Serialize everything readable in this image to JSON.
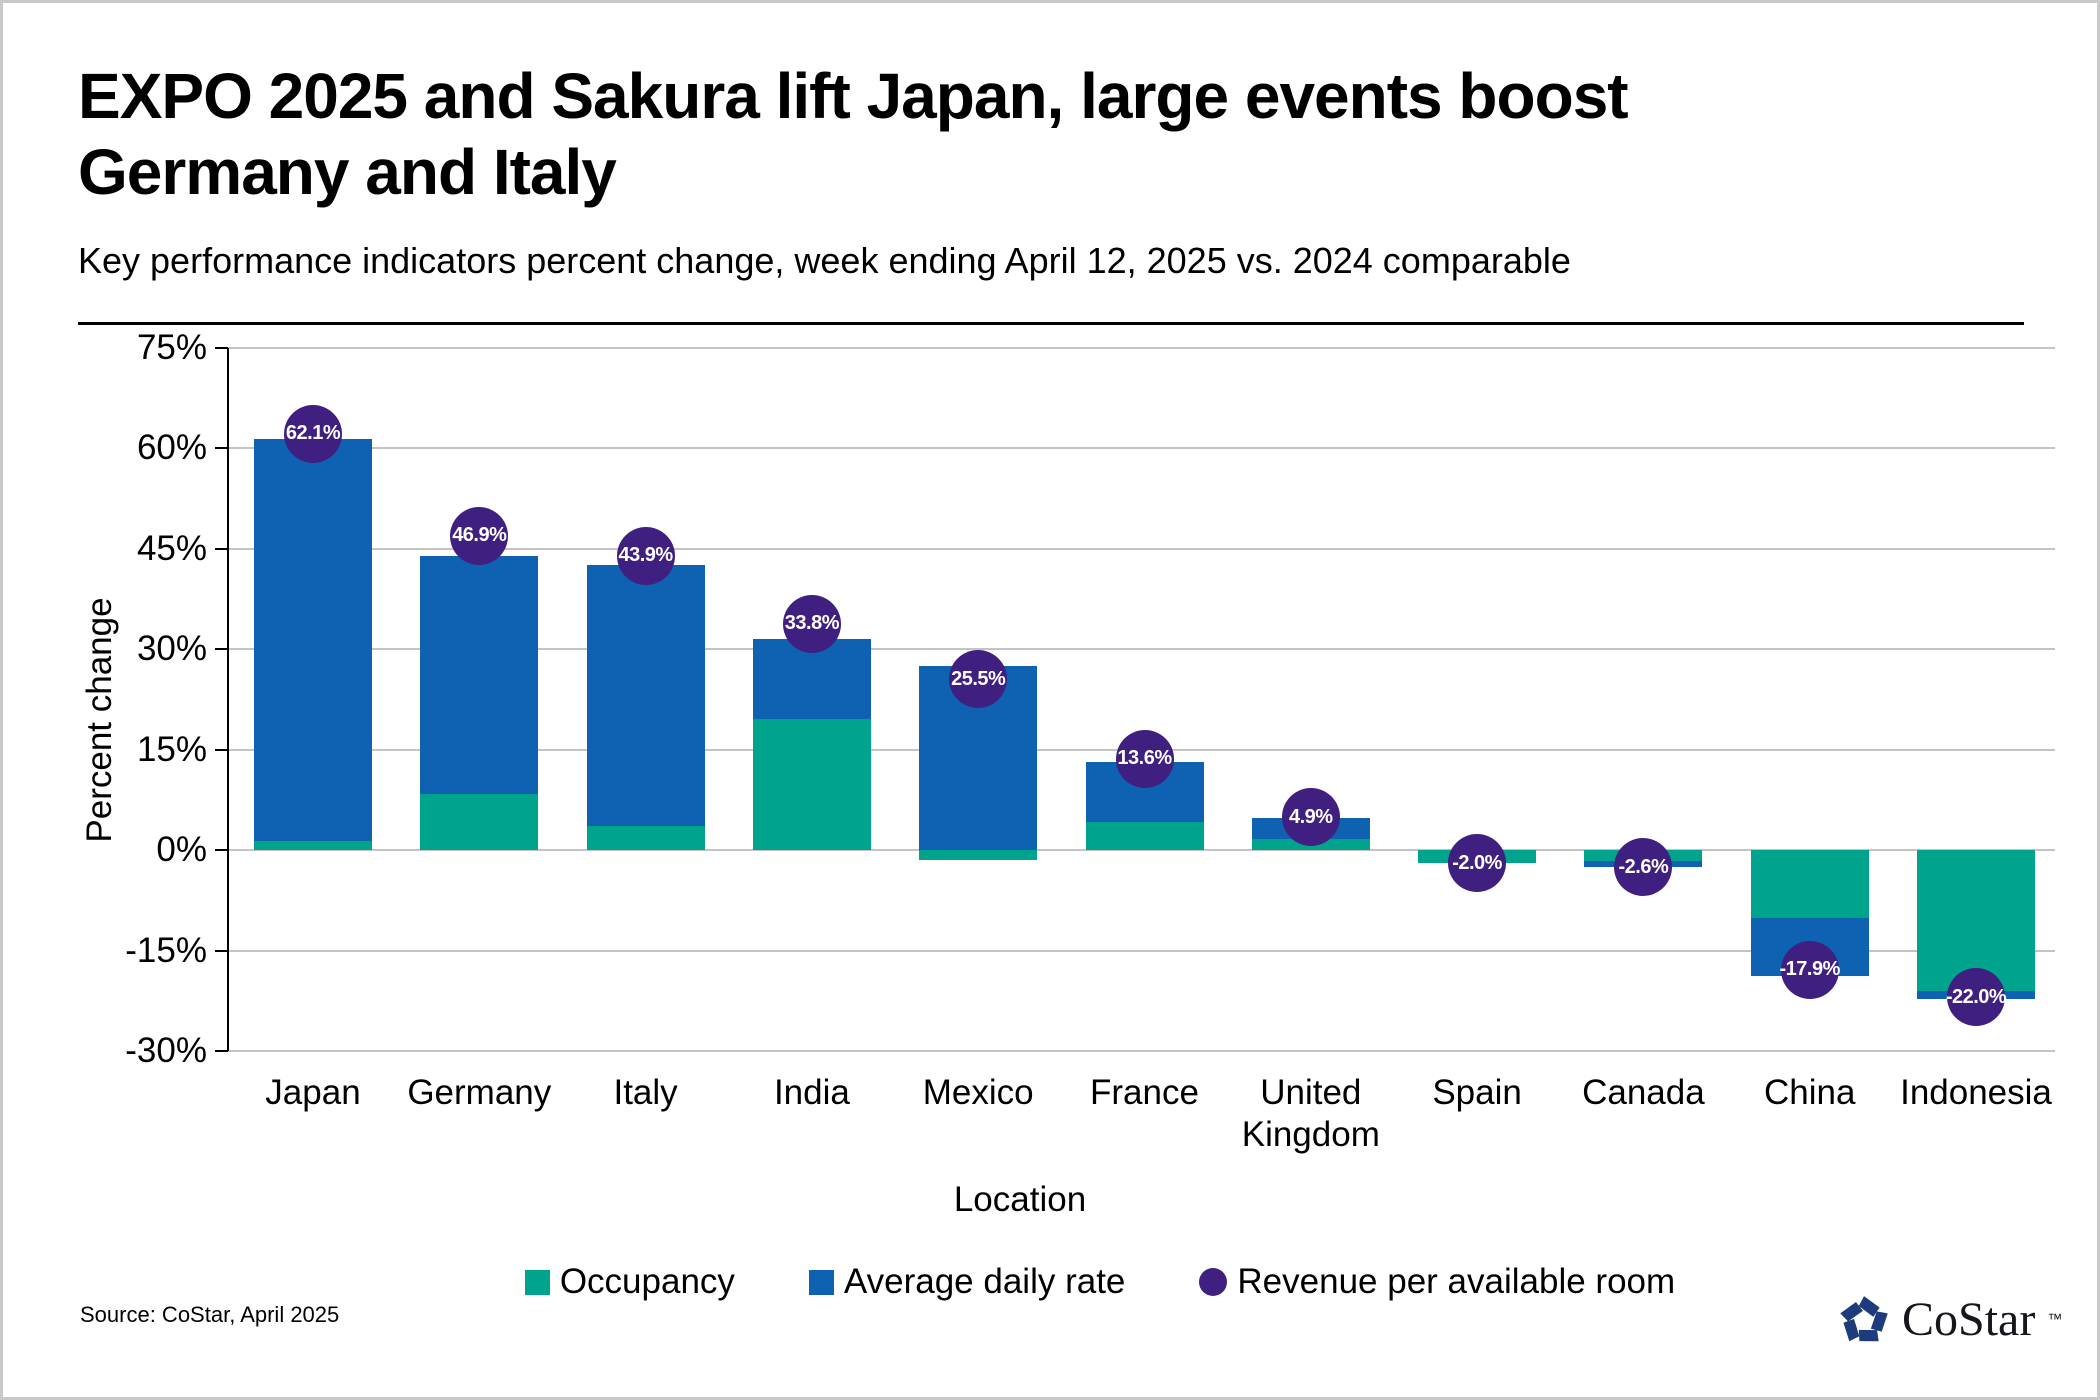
{
  "page": {
    "title_line1": "EXPO 2025 and Sakura lift Japan, large events boost",
    "title_line2": "Germany and Italy",
    "subtitle": "Key performance indicators percent change, week ending April 12, 2025 vs. 2024 comparable",
    "source": "Source: CoStar, April 2025",
    "logo_text": "CoStar",
    "logo_tm": "™"
  },
  "colors": {
    "occupancy": "#00A38C",
    "adr": "#0E62B1",
    "revpar": "#3F1F7F",
    "gridline": "#C4C4C4",
    "axis": "#000000",
    "logo_navy": "#1E3B7B"
  },
  "chart_data": {
    "type": "bar",
    "stacked": true,
    "title": "EXPO 2025 and Sakura lift Japan, large events boost Germany and Italy",
    "subtitle": "Key performance indicators percent change, week ending April 12, 2025 vs. 2024 comparable",
    "xlabel": "Location",
    "ylabel": "Percent change",
    "ylim": [
      -30,
      75
    ],
    "ytick_step": 15,
    "ytick_labels": [
      "75%",
      "60%",
      "45%",
      "30%",
      "15%",
      "0%",
      "-15%",
      "-30%"
    ],
    "grid": true,
    "legend_position": "bottom",
    "categories": [
      "Japan",
      "Germany",
      "Italy",
      "India",
      "Mexico",
      "France",
      "United Kingdom",
      "Spain",
      "Canada",
      "China",
      "Indonesia"
    ],
    "series": [
      {
        "name": "Occupancy",
        "color": "#00A38C",
        "values": [
          1.3,
          8.4,
          3.6,
          19.6,
          -1.5,
          4.2,
          1.6,
          -2.0,
          -1.6,
          -10.1,
          -21.0
        ]
      },
      {
        "name": "Average daily rate",
        "color": "#0E62B1",
        "values": [
          60.0,
          35.5,
          38.9,
          11.9,
          27.4,
          9.0,
          3.2,
          0.0,
          -1.0,
          -8.7,
          -1.3
        ]
      }
    ],
    "markers": {
      "name": "Revenue per available room",
      "color": "#3F1F7F",
      "values": [
        62.1,
        46.9,
        43.9,
        33.8,
        25.5,
        13.6,
        4.9,
        -2.0,
        -2.6,
        -17.9,
        -22.0
      ],
      "labels": [
        "62.1%",
        "46.9%",
        "43.9%",
        "33.8%",
        "25.5%",
        "13.6%",
        "4.9%",
        "-2.0%",
        "-2.6%",
        "-17.9%",
        "-22.0%"
      ]
    }
  }
}
